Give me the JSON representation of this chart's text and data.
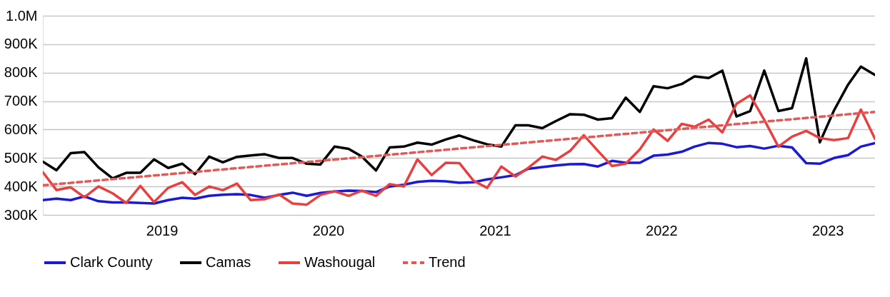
{
  "chart_data": {
    "type": "line",
    "x": [
      "2018-04-15",
      "2018-05-15",
      "2018-06-15",
      "2018-07-15",
      "2018-08-15",
      "2018-09-15",
      "2018-10-15",
      "2018-11-15",
      "2018-12-15",
      "2019-01-15",
      "2019-02-15",
      "2019-03-15",
      "2019-04-15",
      "2019-05-15",
      "2019-06-15",
      "2019-07-15",
      "2019-08-15",
      "2019-09-15",
      "2019-10-15",
      "2019-11-15",
      "2019-12-15",
      "2020-01-15",
      "2020-02-15",
      "2020-03-15",
      "2020-04-15",
      "2020-05-15",
      "2020-06-15",
      "2020-07-15",
      "2020-08-15",
      "2020-09-15",
      "2020-10-15",
      "2020-11-15",
      "2020-12-15",
      "2021-01-15",
      "2021-02-15",
      "2021-03-15",
      "2021-04-15",
      "2021-05-15",
      "2021-06-15",
      "2021-07-15",
      "2021-08-15",
      "2021-09-15",
      "2021-10-15",
      "2021-11-15",
      "2021-12-15",
      "2022-01-15",
      "2022-02-15",
      "2022-03-15",
      "2022-04-15",
      "2022-05-15",
      "2022-06-15",
      "2022-07-15",
      "2022-08-15",
      "2022-09-15",
      "2022-10-15",
      "2022-11-15",
      "2022-12-15",
      "2023-01-15",
      "2023-02-15",
      "2023-03-15",
      "2023-04-15"
    ],
    "series": [
      {
        "name": "Clark County",
        "color": "#1a1ad6",
        "values": [
          352000,
          357000,
          352000,
          365000,
          348000,
          344000,
          344000,
          342000,
          340000,
          352000,
          360000,
          357000,
          367000,
          371000,
          373000,
          370000,
          360000,
          370000,
          378000,
          367000,
          377000,
          382000,
          385000,
          384000,
          380000,
          400000,
          406000,
          416000,
          420000,
          418000,
          413000,
          415000,
          425000,
          432000,
          440000,
          462000,
          468000,
          474000,
          478000,
          479000,
          470000,
          490000,
          483000,
          483000,
          508000,
          512000,
          522000,
          540000,
          553000,
          550000,
          538000,
          542000,
          533000,
          543000,
          537000,
          482000,
          480000,
          500000,
          510000,
          540000,
          552000
        ]
      },
      {
        "name": "Camas",
        "color": "#000000",
        "values": [
          487000,
          457000,
          517000,
          521000,
          467000,
          428000,
          448000,
          448000,
          495000,
          465000,
          480000,
          443000,
          505000,
          485000,
          504000,
          509000,
          513000,
          500000,
          500000,
          480000,
          477000,
          540000,
          532000,
          505000,
          456000,
          537000,
          540000,
          554000,
          547000,
          565000,
          579000,
          562000,
          548000,
          540000,
          615000,
          615000,
          605000,
          630000,
          654000,
          652000,
          635000,
          640000,
          712000,
          662000,
          752000,
          745000,
          760000,
          787000,
          781000,
          807000,
          646000,
          665000,
          807000,
          665000,
          675000,
          850000,
          555000,
          667000,
          758000,
          821000,
          792000
        ]
      },
      {
        "name": "Washougal",
        "color": "#e8403f",
        "values": [
          450000,
          387000,
          397000,
          362000,
          400000,
          376000,
          342000,
          402000,
          345000,
          395000,
          415000,
          370000,
          400000,
          387000,
          410000,
          352000,
          355000,
          372000,
          340000,
          336000,
          370000,
          383000,
          367000,
          385000,
          367000,
          408000,
          400000,
          495000,
          440000,
          483000,
          482000,
          420000,
          395000,
          470000,
          435000,
          465000,
          505000,
          493000,
          525000,
          580000,
          525000,
          472000,
          480000,
          530000,
          600000,
          560000,
          620000,
          610000,
          635000,
          590000,
          690000,
          720000,
          634000,
          540000,
          575000,
          595000,
          570000,
          563000,
          570000,
          670000,
          567000
        ]
      },
      {
        "name": "Trend",
        "color": "#e05a5a",
        "line_style": "dashed",
        "x": [
          "2018-04-15",
          "2023-04-15"
        ],
        "values": [
          404000,
          662000
        ]
      }
    ],
    "xlim": [
      "2018-04-15",
      "2023-04-15"
    ],
    "xticks": [
      "2019",
      "2020",
      "2021",
      "2022",
      "2023"
    ],
    "ylim": [
      300000,
      1000000
    ],
    "yticks": [
      {
        "value": 300000,
        "label": "300K"
      },
      {
        "value": 400000,
        "label": "400K"
      },
      {
        "value": 500000,
        "label": "500K"
      },
      {
        "value": 600000,
        "label": "600K"
      },
      {
        "value": 700000,
        "label": "700K"
      },
      {
        "value": 800000,
        "label": "800K"
      },
      {
        "value": 900000,
        "label": "900K"
      },
      {
        "value": 1000000,
        "label": "1.0M"
      }
    ],
    "grid": "y",
    "legend": "bottom",
    "line_style": "solid"
  }
}
